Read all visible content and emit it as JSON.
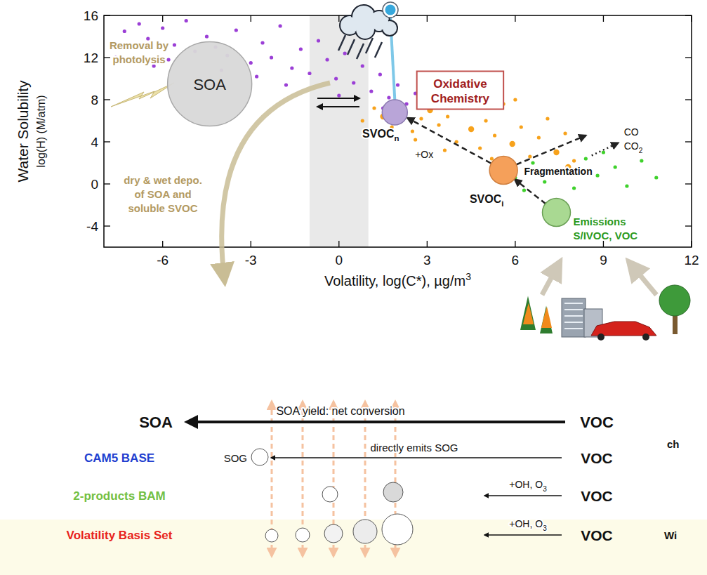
{
  "chart_data": {
    "type": "scatter",
    "xlabel": {
      "text": "Volatility,  log(C*), µg/m",
      "sup": "3"
    },
    "ylabel": "Water Solubility",
    "ylabel_units": "log(H) (M/atm)",
    "xlim": [
      -8,
      12
    ],
    "xticks": [
      -6,
      -3,
      0,
      3,
      6,
      9,
      12
    ],
    "ylim": [
      -6,
      16
    ],
    "yticks": [
      -4,
      0,
      4,
      8,
      12,
      16
    ],
    "series": [
      {
        "color": "#9b3fd6",
        "marker": "circle",
        "x": [
          -7.3,
          -6.8,
          -6.5,
          -6.0,
          -5.6,
          -5.2,
          -4.9,
          -4.5,
          -4.2,
          -3.8,
          -3.5,
          -3.0,
          -2.6,
          -2.3,
          -2.0,
          -1.6,
          -1.3,
          -1.0,
          -0.7,
          -0.4,
          -0.1,
          0.2,
          0.5,
          0.8,
          1.1,
          1.4,
          1.7,
          2.0,
          2.3,
          -7.6,
          -5.8,
          -2.8,
          0.0,
          1.5,
          -4.0,
          -6.3,
          2.6,
          -1.8
        ],
        "values": [
          14.5,
          15.2,
          13.8,
          14.8,
          13.2,
          15.5,
          12.6,
          14.0,
          13.0,
          12.2,
          14.6,
          11.5,
          13.4,
          12.0,
          15.0,
          11.0,
          12.8,
          10.5,
          13.6,
          11.8,
          10.0,
          12.4,
          9.6,
          11.2,
          8.8,
          10.4,
          8.2,
          9.4,
          7.6,
          12.0,
          11.8,
          10.2,
          8.4,
          7.2,
          10.8,
          11.2,
          8.6,
          9.4
        ]
      },
      {
        "color": "#f7a21b",
        "marker": "circle",
        "x": [
          1.5,
          1.8,
          2.2,
          2.5,
          2.8,
          3.1,
          3.4,
          3.7,
          4.0,
          4.2,
          4.5,
          4.8,
          5.0,
          5.3,
          5.6,
          5.9,
          6.2,
          6.5,
          6.8,
          7.1,
          7.4,
          7.7,
          8.0,
          3.0,
          2.0,
          4.4,
          6.0,
          5.2,
          3.6,
          2.6,
          7.8,
          1.2,
          0.8
        ],
        "values": [
          6.4,
          5.4,
          6.8,
          5.0,
          6.2,
          7.0,
          5.6,
          6.4,
          4.0,
          7.2,
          5.2,
          3.4,
          6.0,
          4.6,
          7.6,
          3.8,
          5.4,
          2.6,
          4.4,
          6.2,
          3.0,
          4.8,
          2.2,
          8.4,
          7.8,
          8.8,
          8.0,
          2.4,
          3.2,
          4.2,
          1.6,
          7.2,
          6.0
        ]
      },
      {
        "color": "#3fd12c",
        "marker": "circle",
        "x": [
          5.4,
          6.0,
          6.6,
          7.0,
          7.5,
          8.0,
          8.4,
          8.8,
          9.4,
          9.8,
          10.3,
          10.8,
          6.3,
          9.0
        ],
        "values": [
          1.4,
          0.6,
          2.0,
          0.2,
          1.2,
          -0.4,
          2.4,
          0.8,
          1.6,
          -0.2,
          2.2,
          0.6,
          -0.6,
          3.0
        ]
      }
    ],
    "annotations": {
      "soa": "SOA",
      "photolysis": [
        "Removal by",
        "photolysis"
      ],
      "deposition": [
        "dry & wet depo.",
        "of SOA and",
        "soluble SVOC"
      ],
      "oxidative": [
        "Oxidative",
        "Chemistry"
      ],
      "svoc_n": {
        "text": "SVOC",
        "sub": "n"
      },
      "svoc_i": {
        "text": "SVOC",
        "sub": "i"
      },
      "ox": "+Ox",
      "fragmentation": "Fragmentation",
      "co": "CO",
      "co2": {
        "text": "CO",
        "sub": "2"
      },
      "emissions": [
        "Emissions",
        "S/IVOC, VOC"
      ]
    }
  },
  "schematic": {
    "yield": "SOA yield: net conversion",
    "product": "SOA",
    "source": "VOC",
    "rows": [
      {
        "label": "CAM5 BASE",
        "color": "#1f3fd0",
        "note": "directly emits SOG",
        "product": "SOG",
        "source": "VOC"
      },
      {
        "label": "2-products BAM",
        "color": "#72c043",
        "note": {
          "text": "+OH, O",
          "sub": "3"
        },
        "source": "VOC"
      },
      {
        "label": "Volatility Basis Set",
        "color": "#e8231c",
        "note": {
          "text": "+OH, O",
          "sub": "3"
        },
        "source": "VOC"
      }
    ],
    "cut_texts": [
      "ch",
      "Wi"
    ]
  }
}
